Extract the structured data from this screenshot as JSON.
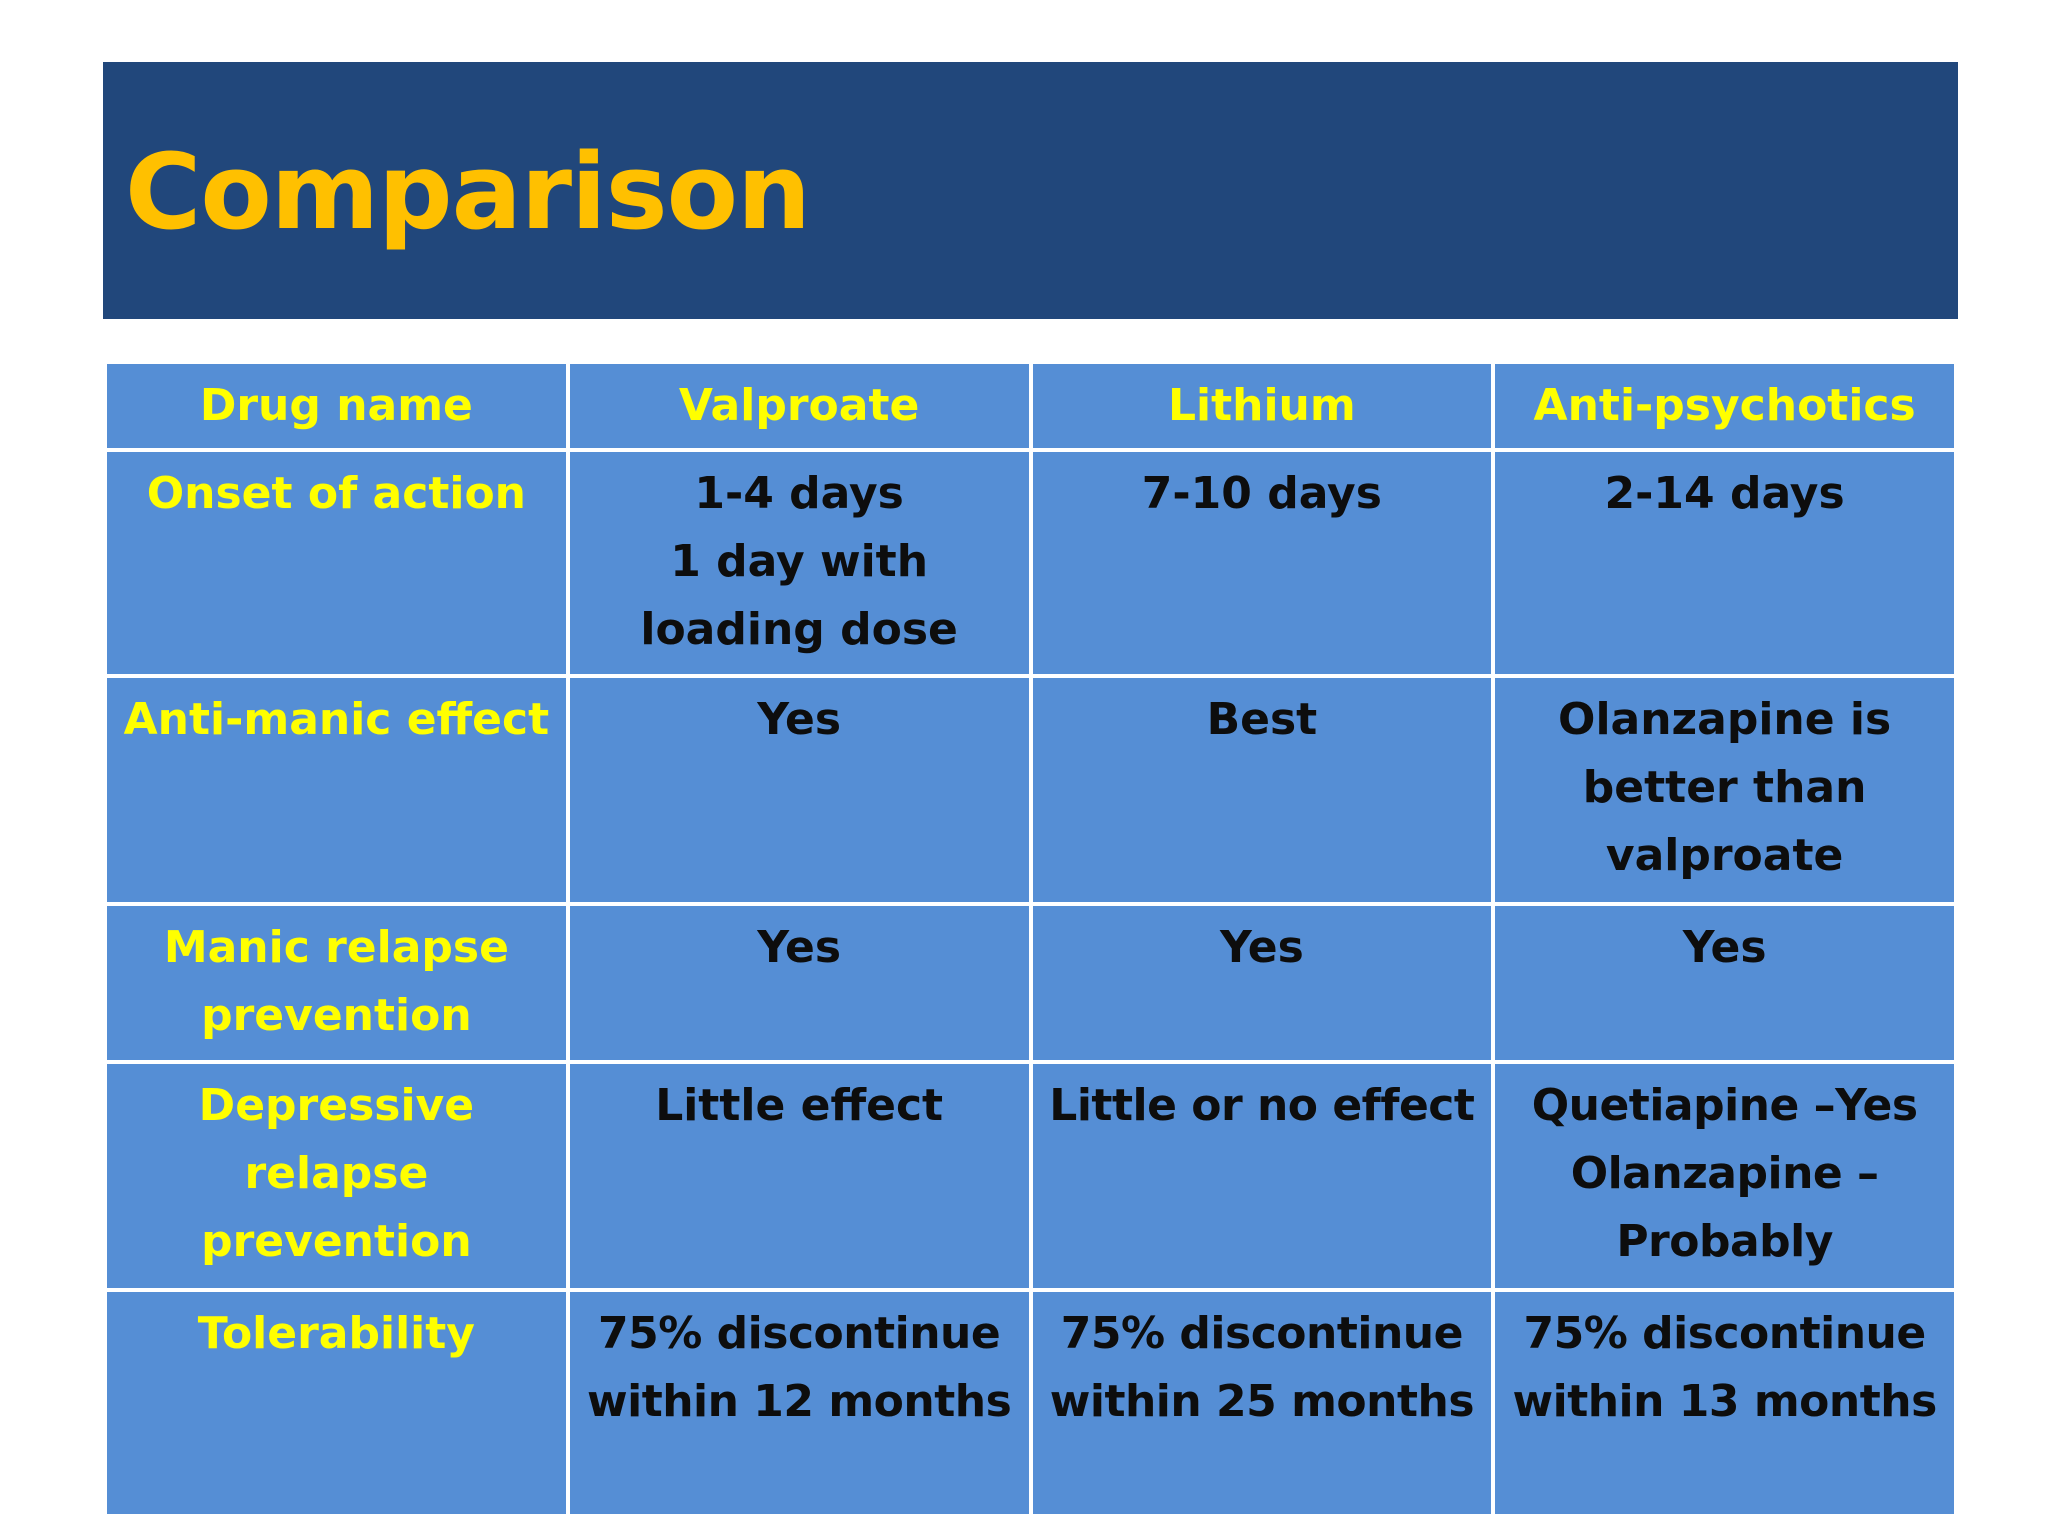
{
  "title": "Comparison",
  "table": {
    "headers": [
      "Drug name",
      "Valproate",
      "Lithium",
      "Anti-psychotics"
    ],
    "rows": [
      {
        "label": [
          "Onset of action"
        ],
        "valproate": [
          "1-4 days",
          "1 day with",
          "loading dose"
        ],
        "lithium": [
          "7-10 days"
        ],
        "antipsychotics": [
          "2-14 days"
        ]
      },
      {
        "label": [
          "Anti-manic effect"
        ],
        "valproate": [
          "Yes"
        ],
        "lithium": [
          "Best"
        ],
        "antipsychotics": [
          "Olanzapine is",
          "better than",
          "valproate"
        ]
      },
      {
        "label": [
          "Manic relapse",
          "prevention"
        ],
        "valproate": [
          "Yes"
        ],
        "lithium": [
          "Yes"
        ],
        "antipsychotics": [
          "Yes"
        ]
      },
      {
        "label": [
          "Depressive",
          "relapse",
          "prevention"
        ],
        "valproate": [
          "Little effect"
        ],
        "lithium": [
          "Little or no effect"
        ],
        "antipsychotics": [
          "Quetiapine –Yes",
          "Olanzapine –",
          "Probably"
        ]
      },
      {
        "label": [
          "Tolerability"
        ],
        "valproate": [
          "75% discontinue",
          "within 12 months"
        ],
        "lithium": [
          "75% discontinue",
          "within 25 months"
        ],
        "antipsychotics": [
          "75% discontinue",
          "within 13 months"
        ]
      }
    ]
  },
  "colors": {
    "title_bar": "#21477b",
    "title_text": "#ffc000",
    "cell_background": "#558ed5",
    "header_text": "#ffff00",
    "value_text": "#0d0d0d"
  }
}
